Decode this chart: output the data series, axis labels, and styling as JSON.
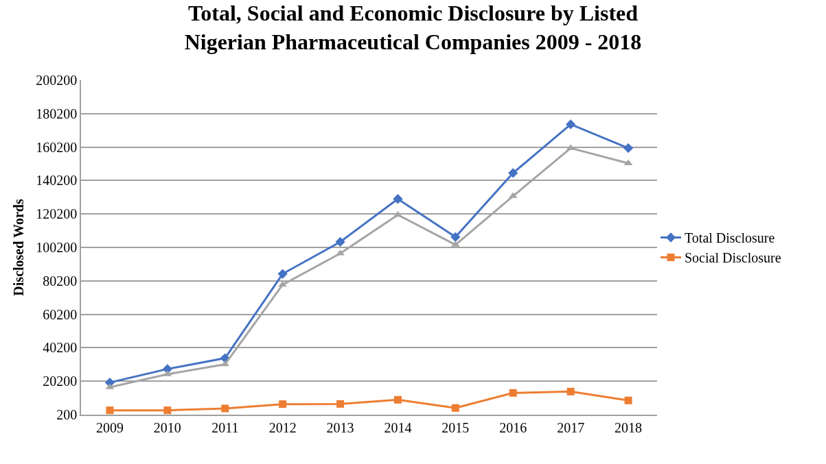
{
  "chart_data": {
    "type": "line",
    "title": "Total, Social and Economic Disclosure by Listed Nigerian Pharmaceutical Companies 2009 - 2018",
    "ylabel": "Disclosed Words",
    "categories": [
      "2009",
      "2010",
      "2011",
      "2012",
      "2013",
      "2014",
      "2015",
      "2016",
      "2017",
      "2018"
    ],
    "series": [
      {
        "name": "Total Disclosure",
        "color": "#4472c4",
        "marker": "diamond",
        "values": [
          19400,
          27500,
          34000,
          84400,
          103500,
          129200,
          106400,
          144700,
          173800,
          159600
        ]
      },
      {
        "name": "Social Disclosure",
        "color": "#ed7d31",
        "marker": "square",
        "values": [
          2800,
          2800,
          3900,
          6500,
          6600,
          9100,
          4200,
          13200,
          14000,
          8700
        ]
      },
      {
        "color": "#a5a5a5",
        "marker": "triangle",
        "values": [
          16600,
          24400,
          30300,
          77900,
          96600,
          119700,
          101800,
          130900,
          159600,
          150500
        ]
      }
    ],
    "ylim": [
      200,
      200200
    ],
    "yticks": [
      200,
      20200,
      40200,
      60200,
      80200,
      100200,
      120200,
      140200,
      160200,
      180200,
      200200
    ],
    "grid": "y",
    "legend": "right",
    "line_style": "solid"
  }
}
